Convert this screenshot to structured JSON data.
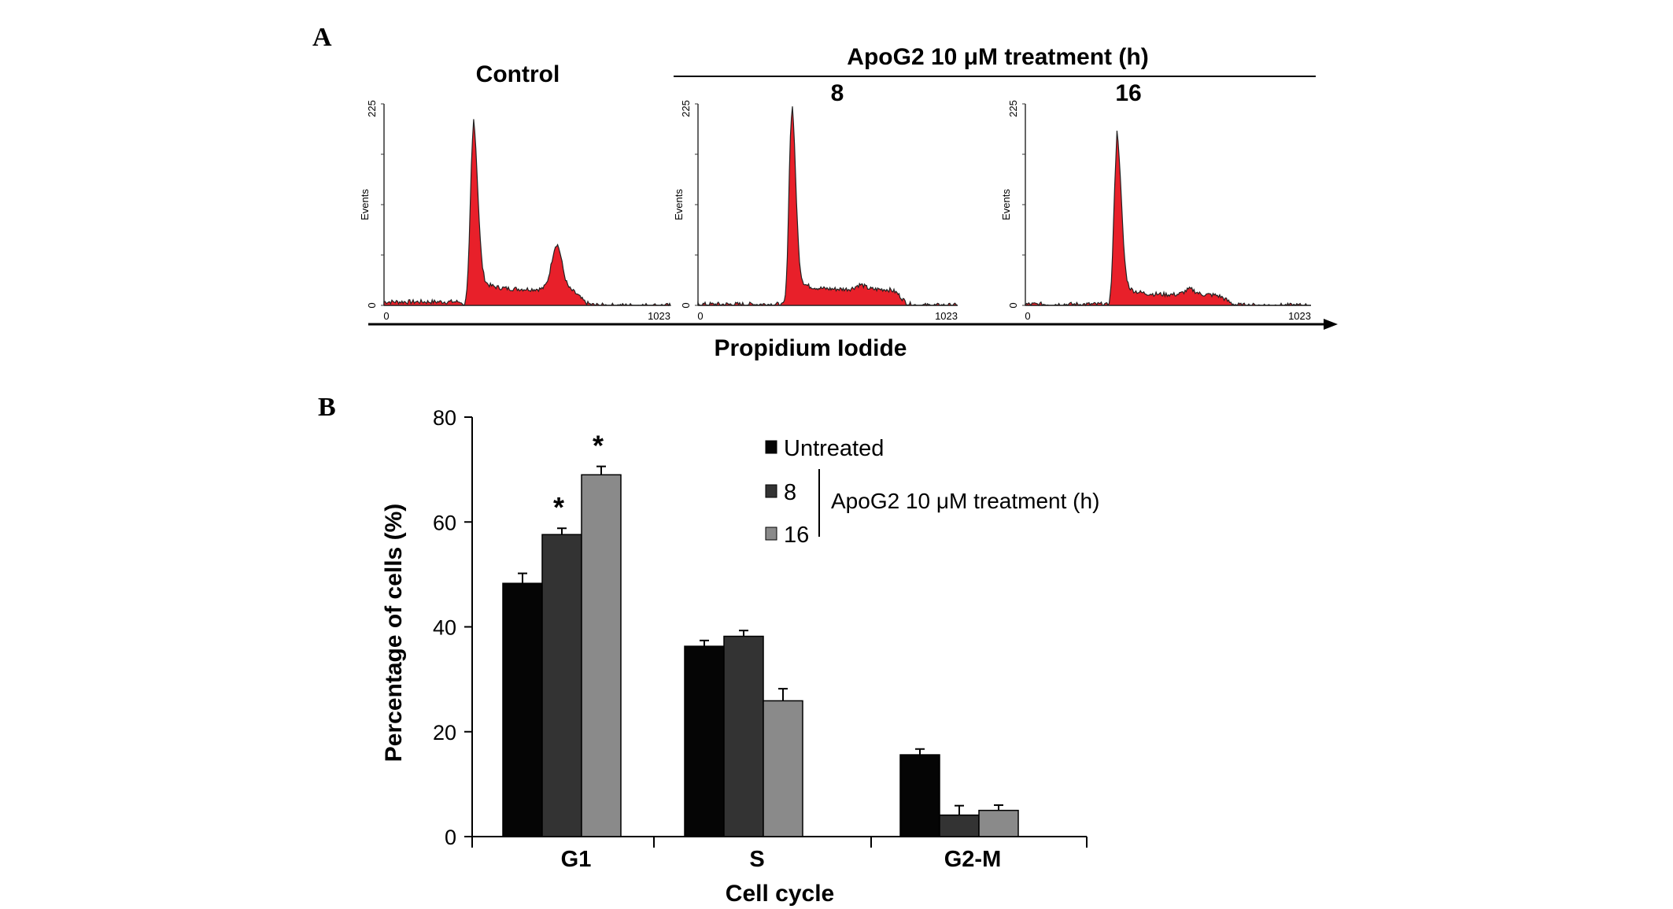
{
  "chart_data": [
    {
      "type": "area",
      "panel_label": "A",
      "title": "ApoG2 10 μM treatment (h)",
      "xlabel": "Propidium Iodide",
      "ylabel": "Events",
      "xlim": [
        0,
        1023
      ],
      "ylim": [
        0,
        225
      ],
      "x_ticks": [
        "0",
        "1023"
      ],
      "y_ticks": [
        "0",
        "225"
      ],
      "fill_color": "#e8202a",
      "histograms": [
        {
          "label": "Control",
          "g1_channel": 318,
          "g1_height": 180,
          "g2_channel": 617,
          "g2_height": 50,
          "s_level": 18,
          "end_channel": 700
        },
        {
          "label": "8",
          "g1_channel": 368,
          "g1_height": 200,
          "g2_channel": 640,
          "g2_height": 5,
          "s_level": 18,
          "end_channel": 800
        },
        {
          "label": "16",
          "g1_channel": 327,
          "g1_height": 168,
          "g2_channel": 590,
          "g2_height": 6,
          "s_level": 12,
          "end_channel": 720
        }
      ]
    },
    {
      "type": "bar",
      "panel_label": "B",
      "xlabel": "Cell cycle",
      "ylabel": "Percentage of cells (%)",
      "ylim": [
        0,
        80
      ],
      "y_ticks": [
        "0",
        "20",
        "40",
        "60",
        "80"
      ],
      "categories": [
        "G1",
        "S",
        "G2-M"
      ],
      "legend_group_label": "ApoG2 10 μM treatment (h)",
      "legend_position": "top-right",
      "series": [
        {
          "name": "Untreated",
          "color": "#050505",
          "values": [
            48.3,
            36.3,
            15.6
          ],
          "errors": [
            1.9,
            1.1,
            1.1
          ],
          "significant": [
            false,
            false,
            false
          ]
        },
        {
          "name": "8",
          "color": "#333333",
          "values": [
            57.6,
            38.2,
            4.1
          ],
          "errors": [
            1.2,
            1.1,
            1.8
          ],
          "significant": [
            true,
            false,
            false
          ]
        },
        {
          "name": "16",
          "color": "#8a8a8a",
          "values": [
            69.0,
            25.9,
            5.0
          ],
          "errors": [
            1.6,
            2.3,
            1.0
          ],
          "significant": [
            true,
            false,
            false
          ]
        }
      ],
      "significance_marker": "*"
    }
  ]
}
